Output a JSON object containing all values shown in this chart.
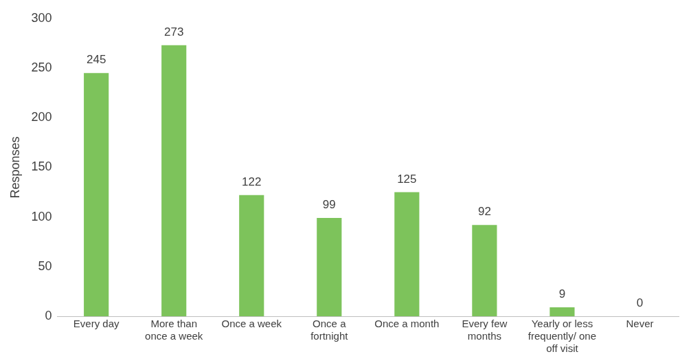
{
  "chart_data": {
    "type": "bar",
    "ylabel": "Responses",
    "categories": [
      "Every day",
      "More than once a week",
      "Once a week",
      "Once a fortnight",
      "Once a month",
      "Every few months",
      "Yearly or less frequently/ one off visit",
      "Never"
    ],
    "values": [
      245,
      273,
      122,
      99,
      125,
      92,
      9,
      0
    ],
    "color": "#7dc35b",
    "ylim": [
      0,
      300
    ],
    "yticks": [
      0,
      50,
      100,
      150,
      200,
      250,
      300
    ],
    "grid": false,
    "legend": false,
    "data_labels": true
  }
}
